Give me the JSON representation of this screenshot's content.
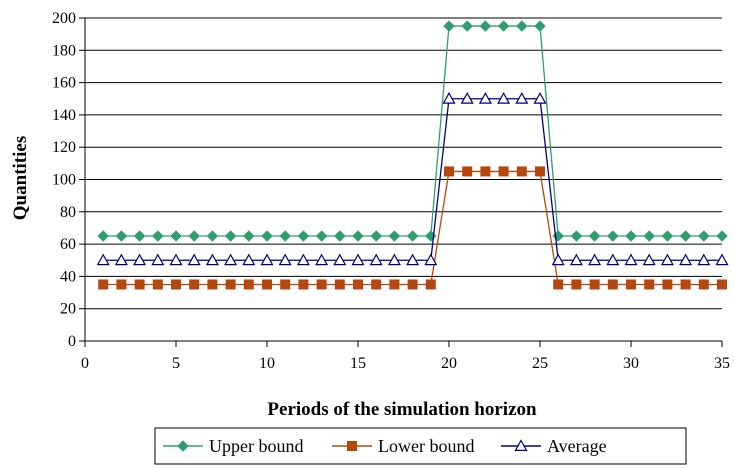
{
  "chart_data": {
    "type": "line",
    "title": "",
    "xlabel": "Periods of the simulation horizon",
    "ylabel": "Quantities",
    "xlim": [
      0,
      35
    ],
    "ylim": [
      0,
      200
    ],
    "x_ticks": [
      0,
      5,
      10,
      15,
      20,
      25,
      30,
      35
    ],
    "y_ticks": [
      0,
      20,
      40,
      60,
      80,
      100,
      120,
      140,
      160,
      180,
      200
    ],
    "grid": "horizontal",
    "legend_position": "bottom",
    "x": [
      1,
      2,
      3,
      4,
      5,
      6,
      7,
      8,
      9,
      10,
      11,
      12,
      13,
      14,
      15,
      16,
      17,
      18,
      19,
      20,
      21,
      22,
      23,
      24,
      25,
      26,
      27,
      28,
      29,
      30,
      31,
      32,
      33,
      34,
      35
    ],
    "series": [
      {
        "name": "Upper bound",
        "color": "#2e9e6e",
        "marker": "diamond",
        "values": [
          65,
          65,
          65,
          65,
          65,
          65,
          65,
          65,
          65,
          65,
          65,
          65,
          65,
          65,
          65,
          65,
          65,
          65,
          65,
          195,
          195,
          195,
          195,
          195,
          195,
          65,
          65,
          65,
          65,
          65,
          65,
          65,
          65,
          65,
          65
        ]
      },
      {
        "name": "Lower bound",
        "color": "#b5470f",
        "marker": "square",
        "values": [
          35,
          35,
          35,
          35,
          35,
          35,
          35,
          35,
          35,
          35,
          35,
          35,
          35,
          35,
          35,
          35,
          35,
          35,
          35,
          105,
          105,
          105,
          105,
          105,
          105,
          35,
          35,
          35,
          35,
          35,
          35,
          35,
          35,
          35,
          35
        ]
      },
      {
        "name": "Average",
        "color": "#00007f",
        "marker": "triangle",
        "values": [
          50,
          50,
          50,
          50,
          50,
          50,
          50,
          50,
          50,
          50,
          50,
          50,
          50,
          50,
          50,
          50,
          50,
          50,
          50,
          150,
          150,
          150,
          150,
          150,
          150,
          50,
          50,
          50,
          50,
          50,
          50,
          50,
          50,
          50,
          50
        ]
      }
    ]
  }
}
